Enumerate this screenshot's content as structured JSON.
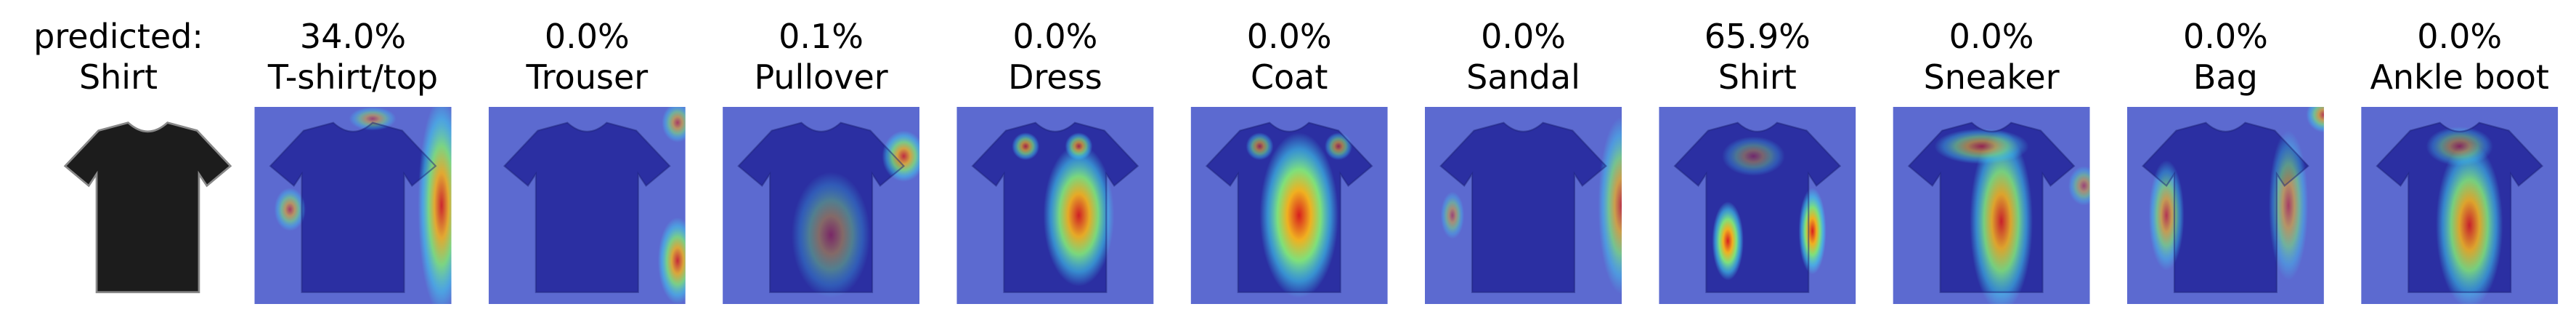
{
  "original": {
    "caption": "predicted:",
    "label": "Shirt"
  },
  "panels": [
    {
      "score": "34.0%",
      "class": "T-shirt/top"
    },
    {
      "score": "0.0%",
      "class": "Trouser"
    },
    {
      "score": "0.1%",
      "class": "Pullover"
    },
    {
      "score": "0.0%",
      "class": "Dress"
    },
    {
      "score": "0.0%",
      "class": "Coat"
    },
    {
      "score": "0.0%",
      "class": "Sandal"
    },
    {
      "score": "65.9%",
      "class": "Shirt"
    },
    {
      "score": "0.0%",
      "class": "Sneaker"
    },
    {
      "score": "0.0%",
      "class": "Bag"
    },
    {
      "score": "0.0%",
      "class": "Ankle boot"
    }
  ]
}
